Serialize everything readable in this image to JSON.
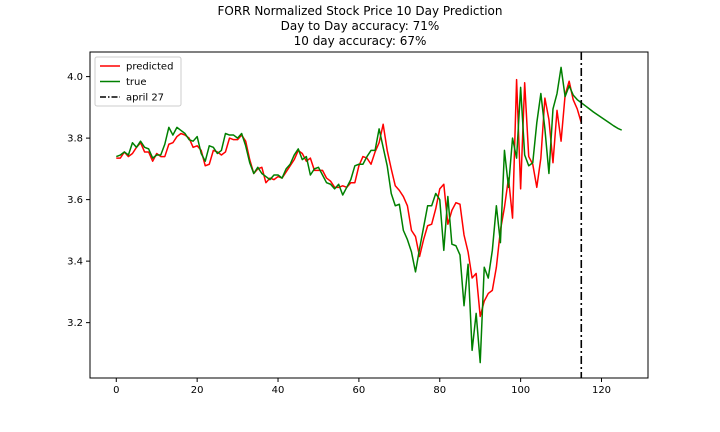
{
  "chart_data": {
    "type": "line",
    "title_lines": [
      "FORR Normalized Stock Price 10 Day Prediction",
      "Day to Day accuracy: 71%",
      "10 day accuracy: 67%"
    ],
    "xlabel": "",
    "ylabel": "",
    "xlim": [
      -6.5,
      131.5
    ],
    "ylim": [
      3.02,
      4.08
    ],
    "xticks": [
      0,
      20,
      40,
      60,
      80,
      100,
      120
    ],
    "xtick_labels": [
      "0",
      "20",
      "40",
      "60",
      "80",
      "100",
      "120"
    ],
    "yticks": [
      3.2,
      3.4,
      3.6,
      3.8,
      4.0
    ],
    "ytick_labels": [
      "3.2",
      "3.4",
      "3.6",
      "3.8",
      "4.0"
    ],
    "grid": false,
    "legend_placement": "upper-left",
    "series": [
      {
        "name": "predicted",
        "color": "#ff0000",
        "x": [
          0,
          1,
          2,
          3,
          4,
          5,
          6,
          7,
          8,
          9,
          10,
          11,
          12,
          13,
          14,
          15,
          16,
          17,
          18,
          19,
          20,
          21,
          22,
          23,
          24,
          25,
          26,
          27,
          28,
          29,
          30,
          31,
          32,
          33,
          34,
          35,
          36,
          37,
          38,
          39,
          40,
          41,
          42,
          43,
          44,
          45,
          46,
          47,
          48,
          49,
          50,
          51,
          52,
          53,
          54,
          55,
          56,
          57,
          58,
          59,
          60,
          61,
          62,
          63,
          64,
          65,
          66,
          67,
          68,
          69,
          70,
          71,
          72,
          73,
          74,
          75,
          76,
          77,
          78,
          79,
          80,
          81,
          82,
          83,
          84,
          85,
          86,
          87,
          88,
          89,
          90,
          91,
          92,
          93,
          94,
          95,
          96,
          97,
          98,
          99,
          100,
          101,
          102,
          103,
          104,
          105,
          106,
          107,
          108,
          109,
          110,
          111,
          112,
          113,
          114,
          115
        ],
        "values": [
          3.735,
          3.735,
          3.755,
          3.74,
          3.75,
          3.77,
          3.785,
          3.755,
          3.755,
          3.725,
          3.75,
          3.74,
          3.74,
          3.78,
          3.785,
          3.805,
          3.815,
          3.81,
          3.8,
          3.77,
          3.775,
          3.76,
          3.71,
          3.715,
          3.76,
          3.755,
          3.745,
          3.755,
          3.8,
          3.795,
          3.795,
          3.81,
          3.79,
          3.73,
          3.685,
          3.7,
          3.705,
          3.655,
          3.67,
          3.665,
          3.675,
          3.67,
          3.69,
          3.71,
          3.73,
          3.76,
          3.75,
          3.725,
          3.735,
          3.695,
          3.695,
          3.695,
          3.67,
          3.66,
          3.64,
          3.64,
          3.645,
          3.64,
          3.655,
          3.655,
          3.71,
          3.74,
          3.735,
          3.715,
          3.755,
          3.785,
          3.845,
          3.76,
          3.7,
          3.645,
          3.63,
          3.61,
          3.58,
          3.5,
          3.48,
          3.415,
          3.47,
          3.515,
          3.52,
          3.57,
          3.635,
          3.65,
          3.52,
          3.565,
          3.59,
          3.585,
          3.485,
          3.43,
          3.345,
          3.36,
          3.22,
          3.27,
          3.295,
          3.305,
          3.38,
          3.5,
          3.575,
          3.67,
          3.54,
          3.99,
          3.635,
          3.98,
          3.74,
          3.715,
          3.64,
          3.735,
          3.93,
          3.86,
          3.72,
          3.89,
          3.79,
          3.94,
          3.985,
          3.925,
          3.895,
          3.85
        ]
      },
      {
        "name": "true",
        "color": "#008000",
        "x": [
          0,
          1,
          2,
          3,
          4,
          5,
          6,
          7,
          8,
          9,
          10,
          11,
          12,
          13,
          14,
          15,
          16,
          17,
          18,
          19,
          20,
          21,
          22,
          23,
          24,
          25,
          26,
          27,
          28,
          29,
          30,
          31,
          32,
          33,
          34,
          35,
          36,
          37,
          38,
          39,
          40,
          41,
          42,
          43,
          44,
          45,
          46,
          47,
          48,
          49,
          50,
          51,
          52,
          53,
          54,
          55,
          56,
          57,
          58,
          59,
          60,
          61,
          62,
          63,
          64,
          65,
          66,
          67,
          68,
          69,
          70,
          71,
          72,
          73,
          74,
          75,
          76,
          77,
          78,
          79,
          80,
          81,
          82,
          83,
          84,
          85,
          86,
          87,
          88,
          89,
          90,
          91,
          92,
          93,
          94,
          95,
          96,
          97,
          98,
          99,
          100,
          101,
          102,
          103,
          104,
          105,
          106,
          107,
          108,
          109,
          110,
          111,
          112,
          113,
          114,
          115,
          116,
          117,
          118,
          119,
          120,
          121,
          122,
          123,
          124,
          125
        ],
        "values": [
          3.74,
          3.745,
          3.755,
          3.745,
          3.785,
          3.77,
          3.79,
          3.77,
          3.765,
          3.735,
          3.745,
          3.745,
          3.78,
          3.835,
          3.81,
          3.835,
          3.825,
          3.815,
          3.795,
          3.79,
          3.805,
          3.75,
          3.725,
          3.775,
          3.77,
          3.75,
          3.76,
          3.815,
          3.81,
          3.81,
          3.8,
          3.815,
          3.775,
          3.72,
          3.685,
          3.705,
          3.685,
          3.675,
          3.665,
          3.68,
          3.68,
          3.67,
          3.7,
          3.715,
          3.745,
          3.765,
          3.73,
          3.74,
          3.68,
          3.7,
          3.705,
          3.68,
          3.655,
          3.65,
          3.635,
          3.65,
          3.615,
          3.64,
          3.665,
          3.71,
          3.715,
          3.715,
          3.74,
          3.76,
          3.76,
          3.83,
          3.77,
          3.71,
          3.62,
          3.58,
          3.585,
          3.5,
          3.47,
          3.43,
          3.365,
          3.44,
          3.51,
          3.58,
          3.58,
          3.62,
          3.6,
          3.435,
          3.61,
          3.455,
          3.45,
          3.42,
          3.255,
          3.39,
          3.11,
          3.23,
          3.07,
          3.38,
          3.345,
          3.435,
          3.58,
          3.46,
          3.76,
          3.64,
          3.8,
          3.735,
          3.965,
          3.745,
          3.71,
          3.72,
          3.85,
          3.945,
          3.83,
          3.685,
          3.895,
          3.945,
          4.03,
          3.935,
          3.97,
          3.94,
          3.925,
          3.915,
          3.905,
          3.895,
          3.885,
          3.876,
          3.867,
          3.858,
          3.849,
          3.84,
          3.832,
          3.826
        ]
      }
    ],
    "vertical_lines": [
      {
        "name": "april 27",
        "x": 115,
        "color": "#000000",
        "style": "dashdot"
      }
    ]
  }
}
